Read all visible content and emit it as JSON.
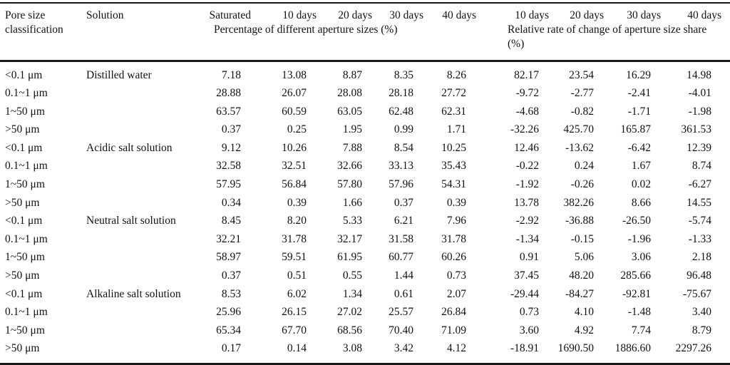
{
  "table": {
    "headers": {
      "pore_size": "Pore size classification",
      "solution": "Solution",
      "day_columns": [
        "Saturated",
        "10 days",
        "20 days",
        "30 days",
        "40 days",
        "10 days",
        "20 days",
        "30 days",
        "40 days"
      ],
      "subheader_left": "Percentage of different aperture sizes (%)",
      "subheader_right": "Relative rate of change of aperture size share (%)"
    },
    "groups": [
      {
        "solution": "Distilled water",
        "rows": [
          {
            "pore_size": "<0.1 μm",
            "values": [
              "7.18",
              "13.08",
              "8.87",
              "8.35",
              "8.26",
              "82.17",
              "23.54",
              "16.29",
              "14.98"
            ]
          },
          {
            "pore_size": "0.1~1 μm",
            "values": [
              "28.88",
              "26.07",
              "28.08",
              "28.18",
              "27.72",
              "-9.72",
              "-2.77",
              "-2.41",
              "-4.01"
            ]
          },
          {
            "pore_size": "1~50 μm",
            "values": [
              "63.57",
              "60.59",
              "63.05",
              "62.48",
              "62.31",
              "-4.68",
              "-0.82",
              "-1.71",
              "-1.98"
            ]
          },
          {
            "pore_size": ">50 μm",
            "values": [
              "0.37",
              "0.25",
              "1.95",
              "0.99",
              "1.71",
              "-32.26",
              "425.70",
              "165.87",
              "361.53"
            ]
          }
        ]
      },
      {
        "solution": "Acidic salt solution",
        "rows": [
          {
            "pore_size": "<0.1 μm",
            "values": [
              "9.12",
              "10.26",
              "7.88",
              "8.54",
              "10.25",
              "12.46",
              "-13.62",
              "-6.42",
              "12.39"
            ]
          },
          {
            "pore_size": "0.1~1 μm",
            "values": [
              "32.58",
              "32.51",
              "32.66",
              "33.13",
              "35.43",
              "-0.22",
              "0.24",
              "1.67",
              "8.74"
            ]
          },
          {
            "pore_size": "1~50 μm",
            "values": [
              "57.95",
              "56.84",
              "57.80",
              "57.96",
              "54.31",
              "-1.92",
              "-0.26",
              "0.02",
              "-6.27"
            ]
          },
          {
            "pore_size": ">50 μm",
            "values": [
              "0.34",
              "0.39",
              "1.66",
              "0.37",
              "0.39",
              "13.78",
              "382.26",
              "8.66",
              "14.55"
            ]
          }
        ]
      },
      {
        "solution": "Neutral salt solution",
        "rows": [
          {
            "pore_size": "<0.1 μm",
            "values": [
              "8.45",
              "8.20",
              "5.33",
              "6.21",
              "7.96",
              "-2.92",
              "-36.88",
              "-26.50",
              "-5.74"
            ]
          },
          {
            "pore_size": "0.1~1 μm",
            "values": [
              "32.21",
              "31.78",
              "32.17",
              "31.58",
              "31.78",
              "-1.34",
              "-0.15",
              "-1.96",
              "-1.33"
            ]
          },
          {
            "pore_size": "1~50 μm",
            "values": [
              "58.97",
              "59.51",
              "61.95",
              "60.77",
              "60.26",
              "0.91",
              "5.06",
              "3.06",
              "2.18"
            ]
          },
          {
            "pore_size": ">50 μm",
            "values": [
              "0.37",
              "0.51",
              "0.55",
              "1.44",
              "0.73",
              "37.45",
              "48.20",
              "285.66",
              "96.48"
            ]
          }
        ]
      },
      {
        "solution": "Alkaline salt solution",
        "rows": [
          {
            "pore_size": "<0.1 μm",
            "values": [
              "8.53",
              "6.02",
              "1.34",
              "0.61",
              "2.07",
              "-29.44",
              "-84.27",
              "-92.81",
              "-75.67"
            ]
          },
          {
            "pore_size": "0.1~1 μm",
            "values": [
              "25.96",
              "26.15",
              "27.02",
              "25.57",
              "26.84",
              "0.73",
              "4.10",
              "-1.48",
              "3.40"
            ]
          },
          {
            "pore_size": "1~50 μm",
            "values": [
              "65.34",
              "67.70",
              "68.56",
              "70.40",
              "71.09",
              "3.60",
              "4.92",
              "7.74",
              "8.79"
            ]
          },
          {
            "pore_size": ">50 μm",
            "values": [
              "0.17",
              "0.14",
              "3.08",
              "3.42",
              "4.12",
              "-18.91",
              "1690.50",
              "1886.60",
              "2297.26"
            ]
          }
        ]
      }
    ]
  },
  "colors": {
    "text": "#111111",
    "rule": "#1a1a1a",
    "background": "#ffffff"
  }
}
